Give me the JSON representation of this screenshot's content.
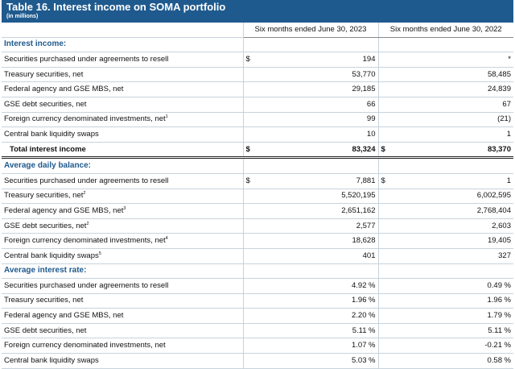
{
  "title": "Table 16. Interest income on SOMA portfolio",
  "subtitle": "(in millions)",
  "columns": [
    "Six months ended June 30, 2023",
    "Six months ended June 30, 2022"
  ],
  "sections": [
    {
      "heading": "Interest income:",
      "rows": [
        {
          "label": "Securities purchased under agreements to resell",
          "sup": "",
          "d1": "$",
          "v1": "194",
          "d2": "",
          "v2": "*"
        },
        {
          "label": "Treasury securities, net",
          "sup": "",
          "d1": "",
          "v1": "53,770",
          "d2": "",
          "v2": "58,485"
        },
        {
          "label": "Federal agency and GSE MBS, net",
          "sup": "",
          "d1": "",
          "v1": "29,185",
          "d2": "",
          "v2": "24,839"
        },
        {
          "label": "GSE debt securities, net",
          "sup": "",
          "d1": "",
          "v1": "66",
          "d2": "",
          "v2": "67"
        },
        {
          "label": "Foreign currency denominated investments, net",
          "sup": "1",
          "d1": "",
          "v1": "99",
          "d2": "",
          "v2": "(21)"
        },
        {
          "label": "Central bank liquidity swaps",
          "sup": "",
          "d1": "",
          "v1": "10",
          "d2": "",
          "v2": "1"
        }
      ],
      "total": {
        "label": "Total interest income",
        "d1": "$",
        "v1": "83,324",
        "d2": "$",
        "v2": "83,370"
      }
    },
    {
      "heading": "Average daily balance:",
      "rows": [
        {
          "label": "Securities purchased under agreements to resell",
          "sup": "",
          "d1": "$",
          "v1": "7,881",
          "d2": "$",
          "v2": "1"
        },
        {
          "label": "Treasury securities, net",
          "sup": "2",
          "d1": "",
          "v1": "5,520,195",
          "d2": "",
          "v2": "6,002,595"
        },
        {
          "label": "Federal agency and GSE MBS, net",
          "sup": "3",
          "d1": "",
          "v1": "2,651,162",
          "d2": "",
          "v2": "2,768,404"
        },
        {
          "label": "GSE debt securities, net",
          "sup": "2",
          "d1": "",
          "v1": "2,577",
          "d2": "",
          "v2": "2,603"
        },
        {
          "label": "Foreign currency denominated investments, net",
          "sup": "4",
          "d1": "",
          "v1": "18,628",
          "d2": "",
          "v2": "19,405"
        },
        {
          "label": "Central bank liquidity swaps",
          "sup": "5",
          "d1": "",
          "v1": "401",
          "d2": "",
          "v2": "327"
        }
      ]
    },
    {
      "heading": "Average interest rate:",
      "rows": [
        {
          "label": "Securities purchased under agreements to resell",
          "sup": "",
          "d1": "",
          "v1": "4.92",
          "p1": "%",
          "d2": "",
          "v2": "0.49",
          "p2": "%"
        },
        {
          "label": "Treasury securities, net",
          "sup": "",
          "d1": "",
          "v1": "1.96",
          "p1": "%",
          "d2": "",
          "v2": "1.96",
          "p2": "%"
        },
        {
          "label": "Federal agency and GSE MBS, net",
          "sup": "",
          "d1": "",
          "v1": "2.20",
          "p1": "%",
          "d2": "",
          "v2": "1.79",
          "p2": "%"
        },
        {
          "label": "GSE debt securities, net",
          "sup": "",
          "d1": "",
          "v1": "5.11",
          "p1": "%",
          "d2": "",
          "v2": "5.11",
          "p2": "%"
        },
        {
          "label": "Foreign currency denominated investments, net",
          "sup": "",
          "d1": "",
          "v1": "1.07",
          "p1": "%",
          "d2": "",
          "v2": "-0.21",
          "p2": "%"
        },
        {
          "label": "Central bank liquidity swaps",
          "sup": "",
          "d1": "",
          "v1": "5.03",
          "p1": "%",
          "d2": "",
          "v2": "0.58",
          "p2": "%"
        }
      ]
    }
  ],
  "colors": {
    "header_bg": "#1f5a8e",
    "section_text": "#1f5a8e"
  }
}
